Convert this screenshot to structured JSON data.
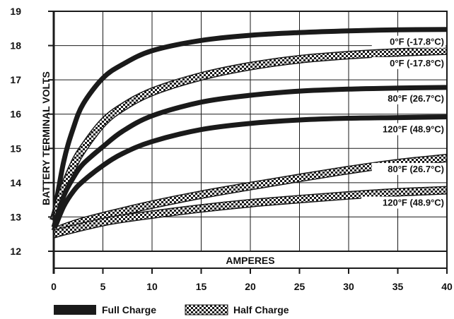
{
  "chart_data": {
    "type": "line",
    "xlabel": "AMPERES",
    "ylabel": "BATTERY TERMINAL VOLTS",
    "xlim": [
      0,
      40
    ],
    "ylim": [
      12,
      19
    ],
    "x_ticks": [
      "0",
      "5",
      "10",
      "15",
      "20",
      "25",
      "30",
      "35",
      "40"
    ],
    "y_ticks": [
      "12",
      "13",
      "14",
      "15",
      "16",
      "17",
      "18",
      "19"
    ],
    "grid": true,
    "legend_position": "bottom",
    "legend": [
      {
        "label": "Full Charge",
        "style": "solid"
      },
      {
        "label": "Half Charge",
        "style": "checkered"
      }
    ],
    "x": [
      0,
      1,
      2,
      3,
      5,
      7,
      10,
      15,
      20,
      25,
      30,
      35,
      40
    ],
    "series": [
      {
        "name": "0°F (-17.8°C)",
        "charge": "full",
        "values": [
          13.0,
          14.6,
          15.6,
          16.3,
          17.05,
          17.45,
          17.85,
          18.15,
          18.3,
          18.38,
          18.43,
          18.46,
          18.47
        ]
      },
      {
        "name": "0°F (-17.8°C)",
        "charge": "half",
        "values": [
          12.9,
          13.8,
          14.5,
          15.0,
          15.75,
          16.2,
          16.65,
          17.1,
          17.4,
          17.6,
          17.72,
          17.8,
          17.85
        ]
      },
      {
        "name": "80°F (26.7°C)",
        "charge": "full",
        "values": [
          12.7,
          13.6,
          14.15,
          14.55,
          15.05,
          15.5,
          15.95,
          16.35,
          16.55,
          16.67,
          16.73,
          16.76,
          16.78
        ]
      },
      {
        "name": "120°F (48.9°C)",
        "charge": "full",
        "values": [
          12.6,
          13.3,
          13.75,
          14.05,
          14.5,
          14.85,
          15.2,
          15.55,
          15.73,
          15.83,
          15.88,
          15.9,
          15.92
        ]
      },
      {
        "name": "80°F (26.7°C)",
        "charge": "half",
        "values": [
          12.55,
          12.68,
          12.78,
          12.87,
          13.02,
          13.16,
          13.36,
          13.65,
          13.9,
          14.14,
          14.37,
          14.57,
          14.72
        ]
      },
      {
        "name": "120°F (48.9°C)",
        "charge": "half",
        "values": [
          12.5,
          12.58,
          12.65,
          12.72,
          12.85,
          12.95,
          13.07,
          13.25,
          13.4,
          13.52,
          13.63,
          13.72,
          13.78
        ]
      }
    ],
    "curve_labels": [
      {
        "text": "0°F (-17.8°C)",
        "series_index": 0
      },
      {
        "text": "0°F (-17.8°C)",
        "series_index": 1
      },
      {
        "text": "80°F (26.7°C)",
        "series_index": 2
      },
      {
        "text": "120°F (48.9°C)",
        "series_index": 3
      },
      {
        "text": "80°F (26.7°C)",
        "series_index": 4
      },
      {
        "text": "120°F  (48.9°C)",
        "series_index": 5
      }
    ],
    "colors": {
      "line": "#1a1a1a",
      "grid": "#1a1a1a",
      "half_light": "#ffffff"
    }
  }
}
